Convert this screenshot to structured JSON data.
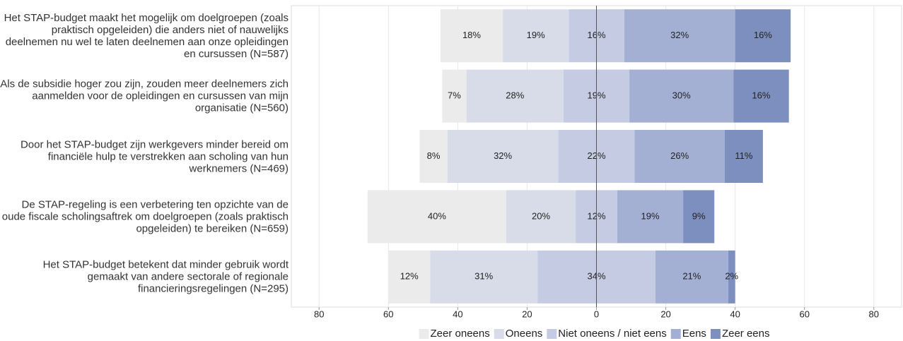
{
  "chart_data": {
    "type": "diverging-bar",
    "categories": [
      "Het STAP-budget maakt het mogelijk om doelgroepen (zoals praktisch opgeleiden) die anders niet of nauwelijks deelnemen nu wel te laten deelnemen aan onze opleidingen en cursussen (N=587)",
      "Als de subsidie hoger zou zijn, zouden meer deelnemers zich aanmelden voor de opleidingen en cursussen van mijn organisatie (N=560)",
      "Door het STAP-budget zijn werkgevers minder bereid om financiële hulp te verstrekken aan scholing van hun werknemers (N=469)",
      "De STAP-regeling is een verbetering ten opzichte van de oude fiscale scholingsaftrek om doelgroepen (zoals praktisch opgeleiden) te bereiken (N=659)",
      "Het STAP-budget betekent dat minder gebruik wordt gemaakt van andere sectorale of regionale financieringsregelingen (N=295)"
    ],
    "series": [
      {
        "name": "Zeer oneens",
        "color": "#ebebeb",
        "values": [
          18,
          7,
          8,
          40,
          12
        ],
        "value_labels": [
          "18%",
          "7%",
          "8%",
          "40%",
          "12%"
        ]
      },
      {
        "name": "Oneens",
        "color": "#d8dce9",
        "values": [
          19,
          28,
          32,
          20,
          31
        ],
        "value_labels": [
          "19%",
          "28%",
          "32%",
          "20%",
          "31%"
        ]
      },
      {
        "name": "Niet oneens / niet eens",
        "color": "#c5cbe2",
        "values": [
          16,
          19,
          22,
          12,
          34
        ],
        "value_labels": [
          "16%",
          "19%",
          "22%",
          "12%",
          "34%"
        ]
      },
      {
        "name": "Eens",
        "color": "#a4b0d3",
        "values": [
          32,
          30,
          26,
          19,
          21
        ],
        "value_labels": [
          "32%",
          "30%",
          "26%",
          "19%",
          "21%"
        ]
      },
      {
        "name": "Zeer eens",
        "color": "#7d8fbf",
        "values": [
          16,
          16,
          11,
          9,
          2
        ],
        "value_labels": [
          "16%",
          "16%",
          "11%",
          "9%",
          "2%"
        ]
      }
    ],
    "xlim": [
      -88,
      88
    ],
    "xticks": [
      {
        "value": -80,
        "label": "80"
      },
      {
        "value": -60,
        "label": "60"
      },
      {
        "value": -40,
        "label": "40"
      },
      {
        "value": -20,
        "label": "20"
      },
      0,
      20,
      40,
      60,
      80
    ],
    "grid": true,
    "legend": "bottom"
  }
}
